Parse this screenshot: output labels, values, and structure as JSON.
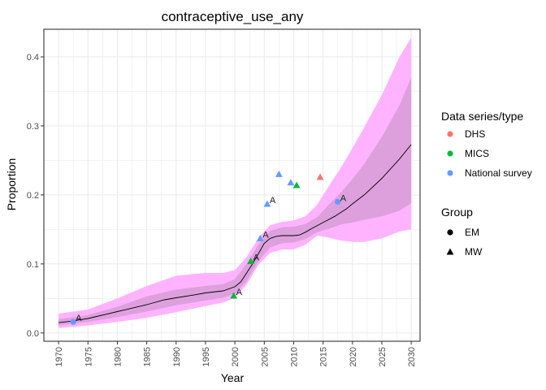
{
  "chart_data": {
    "type": "line",
    "title": "contraceptive_use_any",
    "xlabel": "Year",
    "ylabel": "Proportion",
    "xlim": [
      1967.5,
      2031.5
    ],
    "ylim": [
      -0.012,
      0.44
    ],
    "x_ticks": [
      1970,
      1975,
      1980,
      1985,
      1990,
      1995,
      2000,
      2005,
      2010,
      2015,
      2020,
      2025,
      2030
    ],
    "x_tick_labels": [
      "1970",
      "1975",
      "1980",
      "1985",
      "1990",
      "1995",
      "2000",
      "2005",
      "2010",
      "2015",
      "2020",
      "2025",
      "2030"
    ],
    "y_ticks": [
      0.0,
      0.1,
      0.2,
      0.3,
      0.4
    ],
    "y_tick_labels": [
      "0.0",
      "0.1",
      "0.2",
      "0.3",
      "0.4"
    ],
    "grid": true,
    "colors": {
      "outer_band": "#ffb3ff",
      "inner_band": "#dda0dd",
      "median_line": "#000000",
      "DHS": "#f8766d",
      "MICS": "#00ba38",
      "National survey": "#619cff",
      "panel_border": "#333333",
      "grid": "#ebebeb"
    },
    "median": {
      "x": [
        1970,
        1972,
        1975,
        1978,
        1980,
        1983,
        1985,
        1988,
        1990,
        1993,
        1995,
        1998,
        2000,
        2001,
        2002,
        2003,
        2004,
        2005,
        2006,
        2007,
        2008,
        2010,
        2011,
        2012,
        2013,
        2015,
        2017,
        2019,
        2020,
        2022,
        2025,
        2028,
        2030
      ],
      "y": [
        0.015,
        0.017,
        0.021,
        0.027,
        0.031,
        0.037,
        0.041,
        0.048,
        0.051,
        0.055,
        0.058,
        0.061,
        0.067,
        0.074,
        0.087,
        0.1,
        0.115,
        0.13,
        0.137,
        0.14,
        0.141,
        0.141,
        0.142,
        0.146,
        0.151,
        0.16,
        0.169,
        0.18,
        0.187,
        0.2,
        0.224,
        0.252,
        0.273
      ]
    },
    "band_inner": {
      "x": [
        1970,
        1975,
        1980,
        1985,
        1990,
        1995,
        1998,
        2000,
        2002,
        2004,
        2006,
        2008,
        2010,
        2012,
        2014,
        2016,
        2018,
        2020,
        2022,
        2025,
        2028,
        2030
      ],
      "lower": [
        0.011,
        0.016,
        0.023,
        0.031,
        0.04,
        0.047,
        0.051,
        0.057,
        0.075,
        0.104,
        0.124,
        0.13,
        0.131,
        0.136,
        0.146,
        0.151,
        0.157,
        0.16,
        0.164,
        0.169,
        0.177,
        0.188
      ],
      "upper": [
        0.02,
        0.026,
        0.038,
        0.053,
        0.063,
        0.068,
        0.071,
        0.078,
        0.1,
        0.128,
        0.148,
        0.153,
        0.154,
        0.158,
        0.168,
        0.186,
        0.203,
        0.223,
        0.245,
        0.284,
        0.33,
        0.37
      ]
    },
    "band_outer": {
      "x": [
        1970,
        1975,
        1980,
        1985,
        1990,
        1995,
        1998,
        2000,
        2002,
        2004,
        2006,
        2008,
        2010,
        2012,
        2014,
        2016,
        2018,
        2020,
        2022,
        2025,
        2028,
        2030
      ],
      "lower": [
        0.007,
        0.011,
        0.016,
        0.022,
        0.03,
        0.039,
        0.044,
        0.051,
        0.07,
        0.099,
        0.116,
        0.121,
        0.121,
        0.128,
        0.141,
        0.138,
        0.134,
        0.132,
        0.132,
        0.137,
        0.147,
        0.15
      ],
      "upper": [
        0.028,
        0.034,
        0.05,
        0.068,
        0.083,
        0.087,
        0.087,
        0.091,
        0.11,
        0.138,
        0.156,
        0.161,
        0.163,
        0.169,
        0.186,
        0.213,
        0.239,
        0.268,
        0.298,
        0.345,
        0.4,
        0.428
      ]
    },
    "points": [
      {
        "year": 1972.5,
        "value": 0.016,
        "type": "National survey",
        "group": "EM",
        "label": "A"
      },
      {
        "year": 1999.8,
        "value": 0.054,
        "type": "MICS",
        "group": "MW",
        "label": "A"
      },
      {
        "year": 2002.7,
        "value": 0.104,
        "type": "MICS",
        "group": "MW",
        "label": "A"
      },
      {
        "year": 2004.3,
        "value": 0.137,
        "type": "National survey",
        "group": "MW",
        "label": "A"
      },
      {
        "year": 2005.5,
        "value": 0.187,
        "type": "National survey",
        "group": "MW",
        "label": "A"
      },
      {
        "year": 2007.5,
        "value": 0.23,
        "type": "National survey",
        "group": "MW",
        "label": ""
      },
      {
        "year": 2009.5,
        "value": 0.218,
        "type": "National survey",
        "group": "MW",
        "label": ""
      },
      {
        "year": 2010.5,
        "value": 0.214,
        "type": "MICS",
        "group": "MW",
        "label": ""
      },
      {
        "year": 2014.5,
        "value": 0.226,
        "type": "DHS",
        "group": "MW",
        "label": ""
      },
      {
        "year": 2017.5,
        "value": 0.19,
        "type": "National survey",
        "group": "EM",
        "label": "A"
      }
    ],
    "legend": {
      "placement": "right",
      "series_title": "Data series/type",
      "series": [
        "DHS",
        "MICS",
        "National survey"
      ],
      "group_title": "Group",
      "groups": [
        "EM",
        "MW"
      ]
    }
  }
}
